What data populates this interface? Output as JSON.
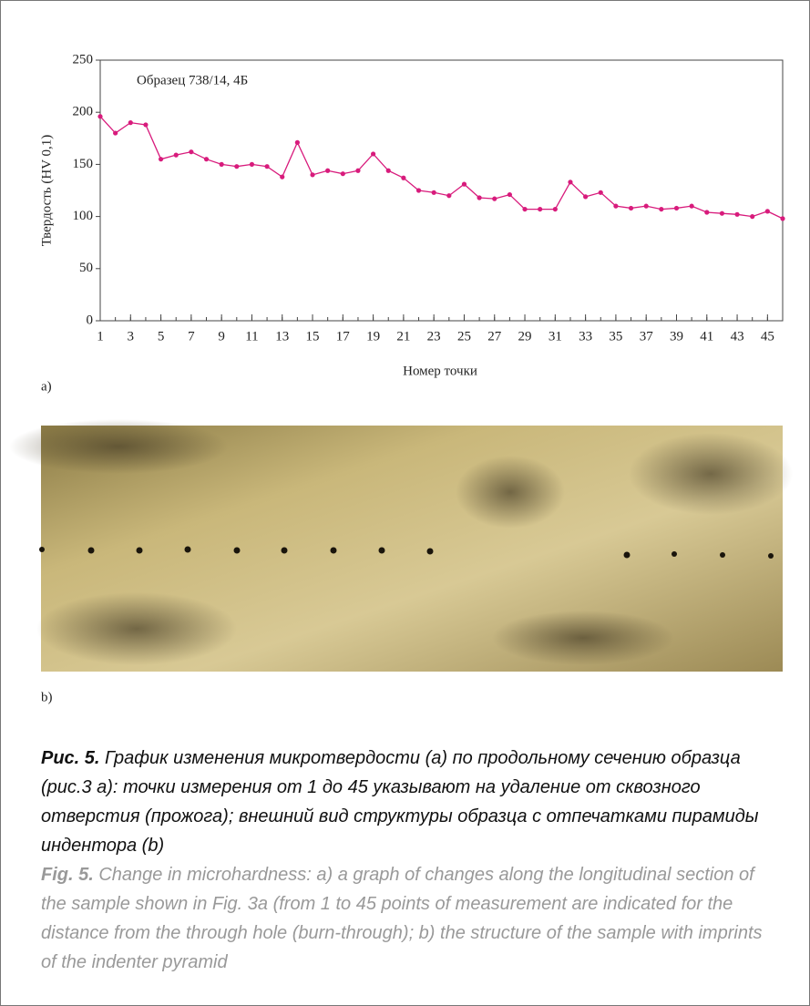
{
  "chart_data": {
    "type": "line",
    "annotation": "Образец 738/14, 4Б",
    "y_label": "Твердость (HV 0,1)",
    "x_label": "Номер точки",
    "x": [
      1,
      2,
      3,
      4,
      5,
      6,
      7,
      8,
      9,
      10,
      11,
      12,
      13,
      14,
      15,
      16,
      17,
      18,
      19,
      20,
      21,
      22,
      23,
      24,
      25,
      26,
      27,
      28,
      29,
      30,
      31,
      32,
      33,
      34,
      35,
      36,
      37,
      38,
      39,
      40,
      41,
      42,
      43,
      44,
      45,
      46
    ],
    "values": [
      196,
      180,
      190,
      188,
      155,
      159,
      162,
      155,
      150,
      148,
      150,
      148,
      138,
      171,
      140,
      144,
      141,
      144,
      160,
      144,
      137,
      125,
      123,
      120,
      131,
      118,
      117,
      121,
      107,
      107,
      107,
      133,
      119,
      123,
      110,
      108,
      110,
      107,
      108,
      110,
      104,
      103,
      102,
      100,
      105,
      98
    ],
    "color": "#d81b7c",
    "xlim": [
      1,
      46
    ],
    "xticks": [
      1,
      3,
      5,
      7,
      9,
      11,
      13,
      15,
      17,
      19,
      21,
      23,
      25,
      27,
      29,
      31,
      33,
      35,
      37,
      39,
      41,
      43,
      45
    ],
    "ylim": [
      0,
      250
    ],
    "yticks": [
      0,
      50,
      100,
      150,
      200,
      250
    ],
    "grid": false
  },
  "figure": {
    "panel_a_label": "a)",
    "panel_b_label": "b)"
  },
  "caption": {
    "ru_label": "Рис. 5.",
    "ru_text": "График изменения микротвердости (a) по продольному сечению образца (рис.3 а): точки измерения от 1 до 45 указывают на удаление от сквозного отверстия (прожога); внешний вид структуры образца с отпечатками пирамиды индентора (b)",
    "en_label": "Fig. 5.",
    "en_text": "Change in microhardness: a) a graph of changes along the longitudinal section of the sample shown in Fig. 3a (from 1 to 45 points of measurement are indicated for the distance from the through hole (burn-through); b) the structure of the sample with imprints of the indenter pyramid"
  }
}
